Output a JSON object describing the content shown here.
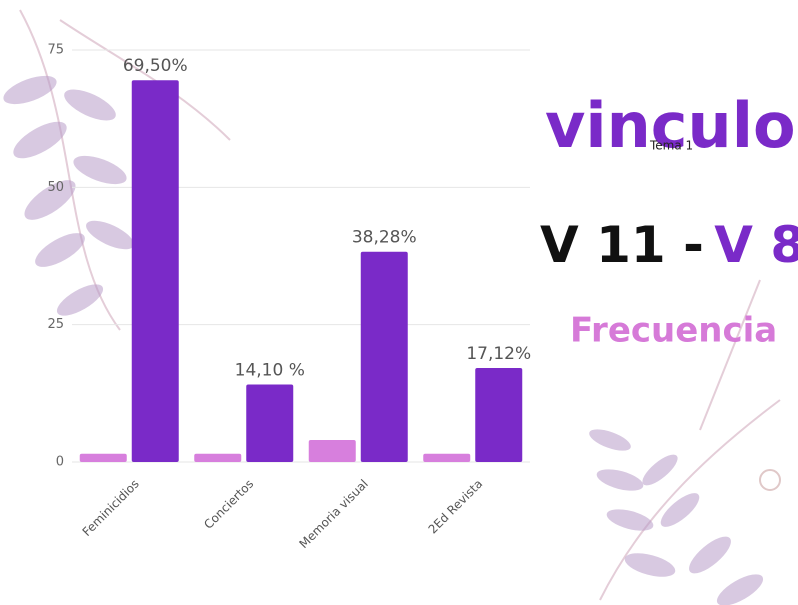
{
  "chart_data": {
    "type": "bar",
    "brand": "vinculo",
    "title_parts": [
      "V 11 -",
      "V 8"
    ],
    "subtitle": "Frecuencia",
    "categories": [
      "Feminicidios",
      "Conciertos",
      "Memoria visual",
      "2Ed Revista"
    ],
    "series": [
      {
        "color": "#d77fdd",
        "values": [
          1.5,
          1.5,
          4,
          1.5
        ]
      },
      {
        "name": "Tema 1",
        "color": "#7a2ac8",
        "values": [
          69.5,
          14.1,
          38.28,
          17.12
        ],
        "value_labels": [
          "69,50%",
          "14,10 %",
          "38,28%",
          "17,12%"
        ]
      }
    ],
    "ylim": [
      0,
      75
    ],
    "yticks": [
      0,
      25,
      50,
      75
    ],
    "grid": true
  }
}
